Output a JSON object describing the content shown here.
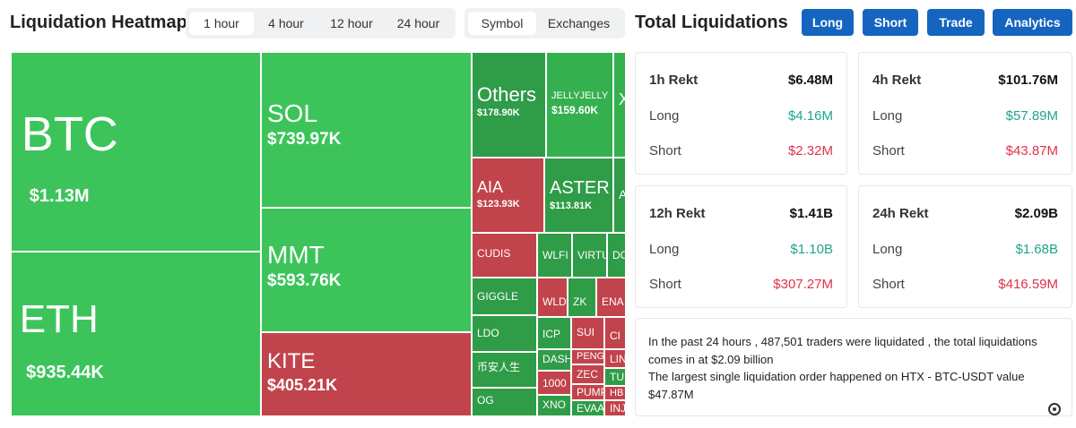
{
  "header": {
    "title": "Liquidation Heatmap",
    "time_tabs": [
      "1 hour",
      "4 hour",
      "12 hour",
      "24 hour"
    ],
    "view_tabs": [
      "Symbol",
      "Exchanges"
    ],
    "totals_title": "Total Liquidations",
    "buttons": [
      "Long",
      "Short",
      "Trade",
      "Analytics"
    ]
  },
  "heatmap": {
    "tiles": [
      {
        "symbol": "BTC",
        "value": "$1.13M",
        "color": "#3cc45a"
      },
      {
        "symbol": "ETH",
        "value": "$935.44K",
        "color": "#3cc45a"
      },
      {
        "symbol": "SOL",
        "value": "$739.97K",
        "color": "#3cc45a"
      },
      {
        "symbol": "MMT",
        "value": "$593.76K",
        "color": "#3cc45a"
      },
      {
        "symbol": "KITE",
        "value": "$405.21K",
        "color": "#c1434b"
      },
      {
        "symbol": "Others",
        "value": "$178.90K",
        "color": "#2f9c48"
      },
      {
        "symbol": "JELLYJELLY",
        "value": "$159.60K",
        "color": "#35b04f"
      },
      {
        "symbol": "X",
        "color": "#35b04f"
      },
      {
        "symbol": "AIA",
        "value": "$123.93K",
        "color": "#c1434b"
      },
      {
        "symbol": "ASTER",
        "value": "$113.81K",
        "color": "#2f9c48"
      },
      {
        "symbol": "A",
        "color": "#2f9c48"
      },
      {
        "symbol": "CUDIS",
        "color": "#c1434b"
      },
      {
        "symbol": "WLFI",
        "color": "#2f9c48"
      },
      {
        "symbol": "VIRTU",
        "color": "#2f9c48"
      },
      {
        "symbol": "DO",
        "color": "#2f9c48"
      },
      {
        "symbol": "GIGGLE",
        "color": "#2f9c48"
      },
      {
        "symbol": "WLD",
        "color": "#c1434b"
      },
      {
        "symbol": "ZK",
        "color": "#2f9c48"
      },
      {
        "symbol": "ENA",
        "color": "#c1434b"
      },
      {
        "symbol": "LDO",
        "color": "#2f9c48"
      },
      {
        "symbol": "ICP",
        "color": "#2f9c48"
      },
      {
        "symbol": "SUI",
        "color": "#c1434b"
      },
      {
        "symbol": "CI",
        "color": "#c1434b"
      },
      {
        "symbol": "币安人生",
        "color": "#2f9c48"
      },
      {
        "symbol": "DASH",
        "color": "#2f9c48"
      },
      {
        "symbol": "PENG",
        "color": "#c1434b"
      },
      {
        "symbol": "LIN",
        "color": "#c1434b"
      },
      {
        "symbol": "ZEC",
        "color": "#c1434b"
      },
      {
        "symbol": "TU",
        "color": "#2f9c48"
      },
      {
        "symbol": "1000",
        "color": "#c1434b"
      },
      {
        "symbol": "PUMP",
        "color": "#c1434b"
      },
      {
        "symbol": "HB",
        "color": "#c1434b"
      },
      {
        "symbol": "OG",
        "color": "#2f9c48"
      },
      {
        "symbol": "XNO",
        "color": "#2f9c48"
      },
      {
        "symbol": "EVAA",
        "color": "#2f9c48"
      },
      {
        "symbol": "INJ",
        "color": "#c1434b"
      }
    ]
  },
  "cards": [
    {
      "title": "1h Rekt",
      "total": "$6.48M",
      "rows": [
        {
          "label": "Long",
          "value": "$4.16M"
        },
        {
          "label": "Short",
          "value": "$2.32M"
        }
      ]
    },
    {
      "title": "4h Rekt",
      "total": "$101.76M",
      "rows": [
        {
          "label": "Long",
          "value": "$57.89M"
        },
        {
          "label": "Short",
          "value": "$43.87M"
        }
      ]
    },
    {
      "title": "12h Rekt",
      "total": "$1.41B",
      "rows": [
        {
          "label": "Long",
          "value": "$1.10B"
        },
        {
          "label": "Short",
          "value": "$307.27M"
        }
      ]
    },
    {
      "title": "24h Rekt",
      "total": "$2.09B",
      "rows": [
        {
          "label": "Long",
          "value": "$1.68B"
        },
        {
          "label": "Short",
          "value": "$416.59M"
        }
      ]
    }
  ],
  "summary": {
    "lines": [
      "In the past 24 hours , 487,501 traders were liquidated , the total liquidations comes in at $2.09 billion",
      "The largest single liquidation order happened on HTX - BTC-USDT value $47.87M"
    ]
  }
}
